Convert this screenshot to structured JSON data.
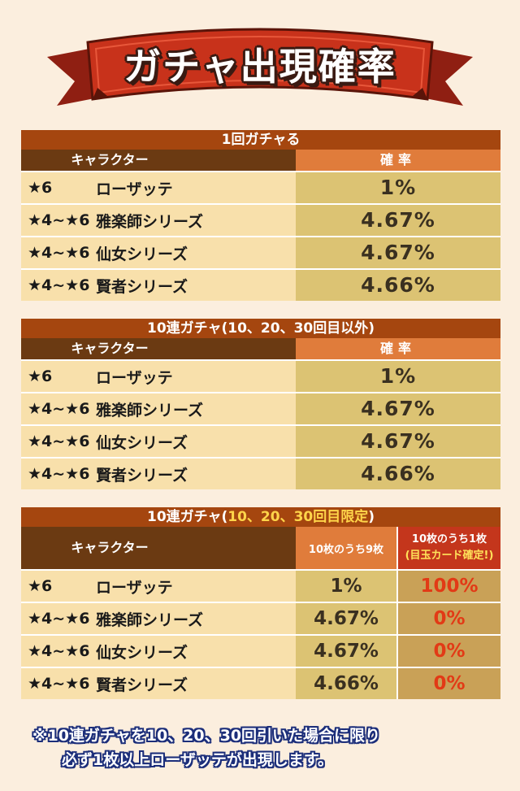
{
  "banner": {
    "title": "ガチャ出現確率"
  },
  "colors": {
    "section_title_bg": "#a5460f",
    "header_char_bg": "#6b3a12",
    "header_rate_bg": "#e07c3b",
    "char_cell_bg": "#f8e0ab",
    "rate_cell_bg": "#dcc373",
    "guaranteed_header_bg": "#c4361c",
    "guaranteed_text": "#e23a16",
    "banner_red": "#c8321b",
    "footnote_outline": "#1c2e7a"
  },
  "sections": [
    {
      "title": "1回ガチャる",
      "header_char": "キャラクター",
      "header_rate": "確率",
      "rows": [
        {
          "rarity": "★6",
          "name": "ローザッテ",
          "rate": "1%"
        },
        {
          "rarity": "★4~★6",
          "name": "雅楽師シリーズ",
          "rate": "4.67%"
        },
        {
          "rarity": "★4~★6",
          "name": "仙女シリーズ",
          "rate": "4.67%"
        },
        {
          "rarity": "★4~★6",
          "name": "賢者シリーズ",
          "rate": "4.66%"
        }
      ]
    },
    {
      "title": "10連ガチャ(10、20、30回目以外)",
      "header_char": "キャラクター",
      "header_rate": "確率",
      "rows": [
        {
          "rarity": "★6",
          "name": "ローザッテ",
          "rate": "1%"
        },
        {
          "rarity": "★4~★6",
          "name": "雅楽師シリーズ",
          "rate": "4.67%"
        },
        {
          "rarity": "★4~★6",
          "name": "仙女シリーズ",
          "rate": "4.67%"
        },
        {
          "rarity": "★4~★6",
          "name": "賢者シリーズ",
          "rate": "4.66%"
        }
      ]
    },
    {
      "title_prefix": "10連ガチャ(",
      "title_highlight": "10、20、30回目限定",
      "title_suffix": ")",
      "header_char": "キャラクター",
      "header_rate_a": "10枚のうち9枚",
      "header_rate_b_line1": "10枚のうち1枚",
      "header_rate_b_line2": "(目玉カード確定!)",
      "rows": [
        {
          "rarity": "★6",
          "name": "ローザッテ",
          "rate_a": "1%",
          "rate_b": "100%"
        },
        {
          "rarity": "★4~★6",
          "name": "雅楽師シリーズ",
          "rate_a": "4.67%",
          "rate_b": "0%"
        },
        {
          "rarity": "★4~★6",
          "name": "仙女シリーズ",
          "rate_a": "4.67%",
          "rate_b": "0%"
        },
        {
          "rarity": "★4~★6",
          "name": "賢者シリーズ",
          "rate_a": "4.66%",
          "rate_b": "0%"
        }
      ]
    }
  ],
  "footnote": {
    "line1": "※10連ガチャを10、20、30回引いた場合に限り",
    "line2": "必ず1枚以上ローザッテが出現します。"
  }
}
